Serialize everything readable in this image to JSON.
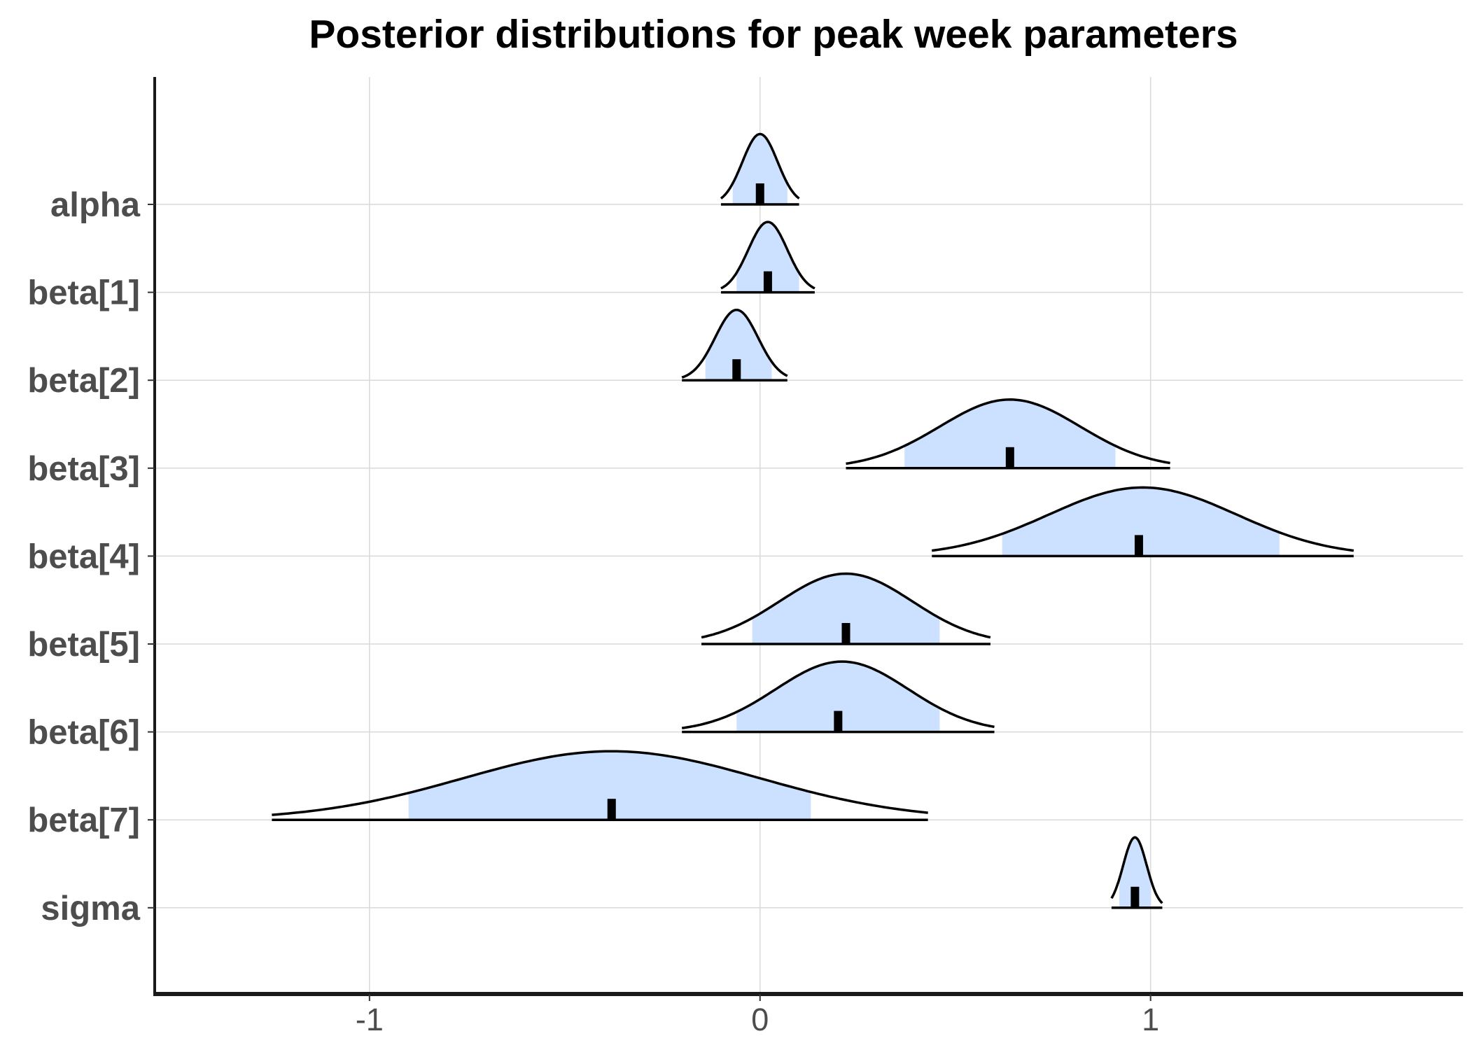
{
  "chart_data": {
    "type": "ridgeline",
    "title": "Posterior distributions for peak week parameters",
    "xlabel": "",
    "ylabel": "",
    "xlim": [
      -1.55,
      1.8
    ],
    "x_ticks": [
      -1,
      0,
      1
    ],
    "x_tick_labels": [
      "-1",
      "0",
      "1"
    ],
    "grid": true,
    "interval_fill": "#cce0ff",
    "line_color": "#000000",
    "parameters": [
      {
        "name": "alpha",
        "mean": 0.0,
        "sd": 0.045,
        "range": [
          -0.1,
          0.1
        ],
        "interval": [
          -0.07,
          0.07
        ],
        "point": 0.0,
        "height": 0.8
      },
      {
        "name": "beta[1]",
        "mean": 0.02,
        "sd": 0.05,
        "range": [
          -0.1,
          0.14
        ],
        "interval": [
          -0.06,
          0.1
        ],
        "point": 0.02,
        "height": 0.8
      },
      {
        "name": "beta[2]",
        "mean": -0.06,
        "sd": 0.055,
        "range": [
          -0.2,
          0.07
        ],
        "interval": [
          -0.14,
          0.03
        ],
        "point": -0.06,
        "height": 0.8
      },
      {
        "name": "beta[3]",
        "mean": 0.64,
        "sd": 0.18,
        "range": [
          0.22,
          1.05
        ],
        "interval": [
          0.37,
          0.91
        ],
        "point": 0.64,
        "height": 0.78
      },
      {
        "name": "beta[4]",
        "mean": 0.98,
        "sd": 0.24,
        "range": [
          0.44,
          1.52
        ],
        "interval": [
          0.62,
          1.33
        ],
        "point": 0.97,
        "height": 0.78
      },
      {
        "name": "beta[5]",
        "mean": 0.22,
        "sd": 0.17,
        "range": [
          -0.15,
          0.59
        ],
        "interval": [
          -0.02,
          0.46
        ],
        "point": 0.22,
        "height": 0.8
      },
      {
        "name": "beta[6]",
        "mean": 0.21,
        "sd": 0.17,
        "range": [
          -0.2,
          0.6
        ],
        "interval": [
          -0.06,
          0.46
        ],
        "point": 0.2,
        "height": 0.8
      },
      {
        "name": "beta[7]",
        "mean": -0.38,
        "sd": 0.38,
        "range": [
          -1.25,
          0.43
        ],
        "interval": [
          -0.9,
          0.13
        ],
        "point": -0.38,
        "height": 0.78
      },
      {
        "name": "sigma",
        "mean": 0.96,
        "sd": 0.03,
        "range": [
          0.9,
          1.03
        ],
        "interval": [
          0.92,
          1.0
        ],
        "point": 0.96,
        "height": 0.8
      }
    ]
  }
}
